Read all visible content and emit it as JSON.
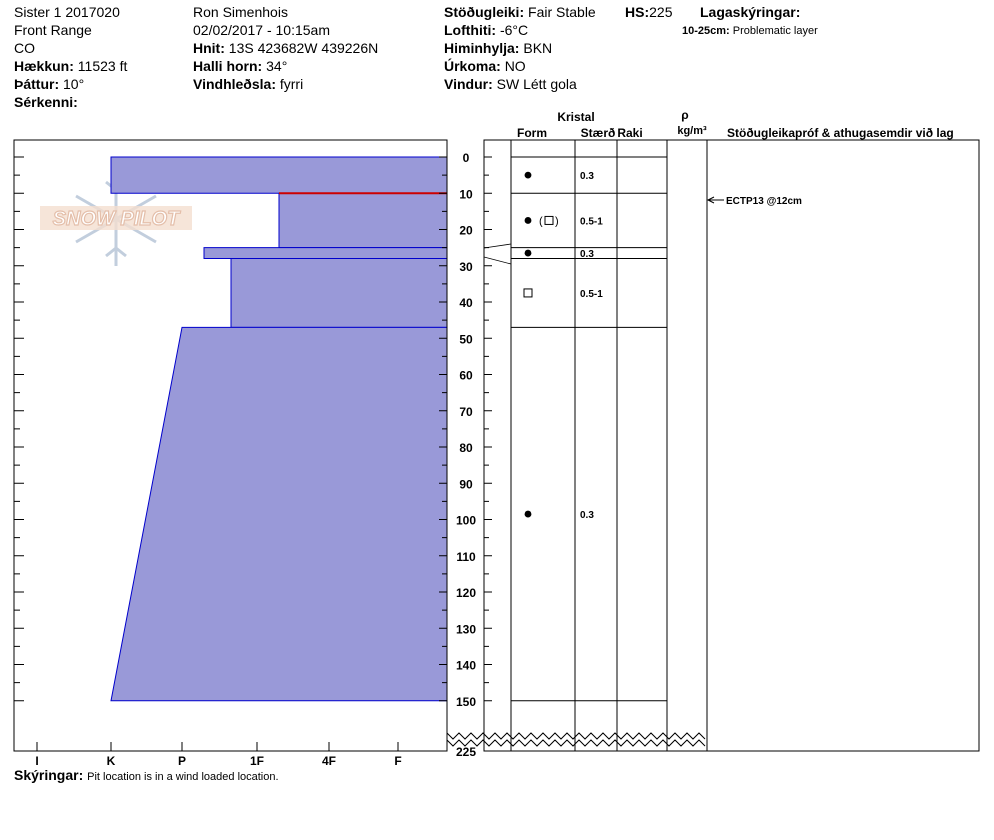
{
  "header": {
    "col1": [
      "Sister 1 2017020",
      "Front Range",
      "CO"
    ],
    "elevation_label": "Hækkun:",
    "elevation_value": "11523 ft",
    "aspect_label": "Þáttur:",
    "aspect_value": "10°",
    "features_label": "Sérkenni:",
    "features_value": "",
    "observer": "Ron Simenhois",
    "datetime": "02/02/2017 - 10:15am",
    "coords_label": "Hnit:",
    "coords_value": "13S 423682W 439226N",
    "slope_label": "Halli horn:",
    "slope_value": "34°",
    "wind_loading_label": "Vindhleðsla:",
    "wind_loading_value": "fyrri",
    "stability_label": "Stöðugleiki:",
    "stability_value": "Fair Stable",
    "hs_label": "HS:",
    "hs_value": "225",
    "air_temp_label": "Lofthiti:",
    "air_temp_value": "-6°C",
    "sky_label": "Himinhylja:",
    "sky_value": "BKN",
    "precip_label": "Úrkoma:",
    "precip_value": "NO",
    "wind_label": "Vindur:",
    "wind_value": "SW  Létt gola",
    "legend_label": "Lagaskýringar:",
    "layer_note_bold": "10-25cm:",
    "layer_note_text": "Problematic layer"
  },
  "columns": {
    "crystal_label": "Kristal",
    "form_label": "Form",
    "size_label": "Stærð",
    "moisture_label": "Raki",
    "rho_label": "ρ",
    "density_unit": "kg/m³",
    "tests_label": "Stöðugleikapróf & athugasemdir við lag"
  },
  "logo": {
    "text": "SNOW PILOT"
  },
  "footer": {
    "label": "Skýringar:",
    "text": "Pit location is in a wind loaded location."
  },
  "colors": {
    "hardness_fill": "#9999d8",
    "layer_line": "#0000cc",
    "problem_line": "#cc0000"
  },
  "chart_data": {
    "type": "snow-profile",
    "depth_axis_ticks": [
      "0",
      "10",
      "20",
      "30",
      "40",
      "50",
      "60",
      "70",
      "80",
      "90",
      "100",
      "110",
      "120",
      "130",
      "140",
      "150",
      "225"
    ],
    "hardness_scale": [
      "I",
      "K",
      "P",
      "1F",
      "4F",
      "F"
    ],
    "layers": [
      {
        "top": 0,
        "bottom": 10,
        "hardness_top": "K",
        "hardness_bottom": "K",
        "form": "●",
        "size": "0.3"
      },
      {
        "top": 10,
        "bottom": 25,
        "hardness_top": "1F+",
        "hardness_bottom": "1F+",
        "form": "● (□)",
        "size": "0.5-1"
      },
      {
        "top": 25,
        "bottom": 28,
        "hardness_top": "P+",
        "hardness_bottom": "P+",
        "form": "●",
        "size": "0.3"
      },
      {
        "top": 28,
        "bottom": 47,
        "hardness_top": "1F-",
        "hardness_bottom": "1F-",
        "form": "□",
        "size": "0.5-1"
      },
      {
        "top": 47,
        "bottom": 150,
        "hardness_top": "P",
        "hardness_bottom": "K",
        "form": "●",
        "size": "0.3"
      }
    ],
    "problem_layer_depth": 10,
    "tests": [
      {
        "depth": 12,
        "label": "ECTP13 @12cm"
      }
    ]
  }
}
